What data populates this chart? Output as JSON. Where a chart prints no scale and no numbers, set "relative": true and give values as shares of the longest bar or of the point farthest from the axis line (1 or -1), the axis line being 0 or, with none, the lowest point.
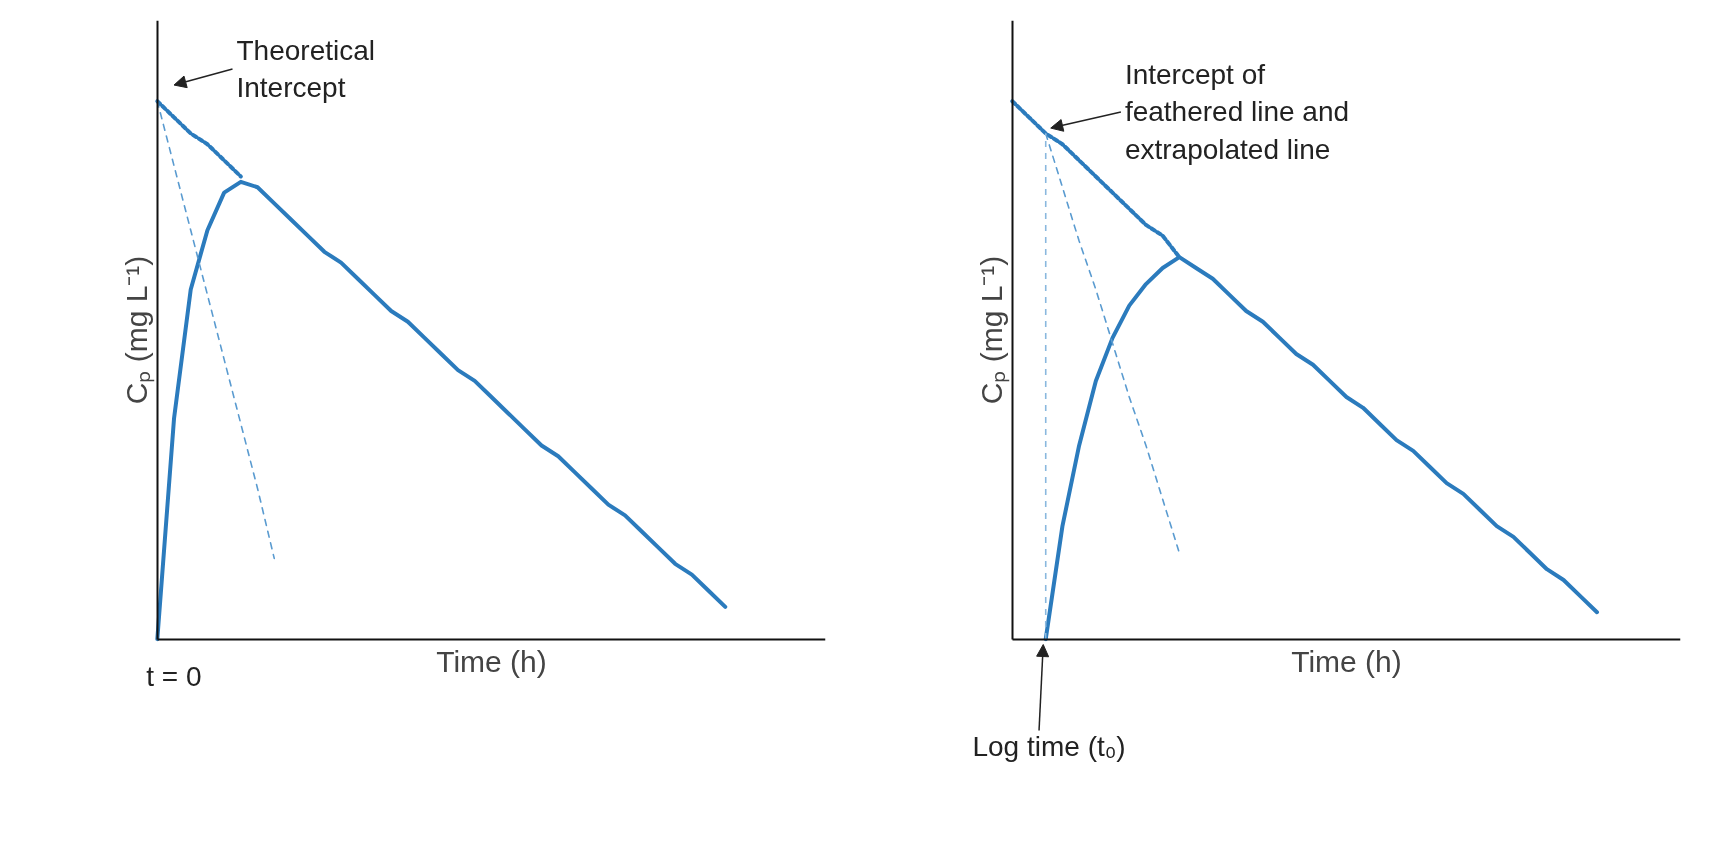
{
  "chart_data": [
    {
      "type": "line",
      "relative": true,
      "xlabel": "Time (h)",
      "ylabel": "Cₚ (mg L⁻¹)",
      "categories": [
        null,
        null,
        null,
        null,
        null,
        null,
        null,
        null,
        null,
        null,
        null,
        null,
        null,
        null,
        null,
        null,
        null,
        null,
        null,
        null,
        null,
        null,
        null,
        null,
        null,
        null,
        null,
        null,
        null,
        null,
        null,
        null,
        null,
        null,
        null,
        null,
        null,
        null,
        null,
        null,
        null
      ],
      "series": [
        {
          "color": "#2b7bbd",
          "line_style": "solid",
          "values": [
            0,
            0.41,
            0.65,
            0.76,
            0.83,
            0.85,
            0.84,
            0.81,
            0.78,
            0.75,
            0.72,
            0.7,
            0.67,
            0.64,
            0.61,
            0.59,
            0.56,
            0.53,
            0.5,
            0.48,
            0.45,
            0.42,
            0.39,
            0.36,
            0.34,
            0.31,
            0.28,
            0.25,
            0.23,
            0.2,
            0.17,
            0.14,
            0.12,
            0.09,
            0.06,
            null,
            null,
            null,
            null,
            null,
            null
          ]
        },
        {
          "color": "#2b7bbd",
          "line_style": "dotted",
          "values": [
            1,
            0.97,
            0.94,
            0.92,
            0.89,
            0.86,
            null,
            null,
            null,
            null,
            null,
            null,
            null,
            null,
            null,
            null,
            null,
            null,
            null,
            null,
            null,
            null,
            null,
            null,
            null,
            null,
            null,
            null,
            null,
            null,
            null,
            null,
            null,
            null,
            null,
            null,
            null,
            null,
            null,
            null,
            null
          ]
        },
        {
          "color": "#5a9bd0",
          "line_style": "dashed",
          "values": [
            1,
            0.88,
            0.76,
            0.64,
            0.52,
            0.4,
            0.28,
            0.15,
            null,
            null,
            null,
            null,
            null,
            null,
            null,
            null,
            null,
            null,
            null,
            null,
            null,
            null,
            null,
            null,
            null,
            null,
            null,
            null,
            null,
            null,
            null,
            null,
            null,
            null,
            null,
            null,
            null,
            null,
            null,
            null,
            null
          ]
        }
      ],
      "annotations": [
        "Theoretical\nIntercept",
        "t = 0"
      ]
    },
    {
      "type": "line",
      "relative": true,
      "xlabel": "Time (h)",
      "ylabel": "Cₚ (mg L⁻¹)",
      "categories": [
        null,
        null,
        null,
        null,
        null,
        null,
        null,
        null,
        null,
        null,
        null,
        null,
        null,
        null,
        null,
        null,
        null,
        null,
        null,
        null,
        null,
        null,
        null,
        null,
        null,
        null,
        null,
        null,
        null,
        null,
        null,
        null,
        null,
        null,
        null,
        null,
        null,
        null,
        null,
        null,
        null
      ],
      "series": [
        {
          "color": "#2b7bbd",
          "line_style": "solid",
          "values": [
            null,
            null,
            0,
            0.21,
            0.36,
            0.48,
            0.56,
            0.62,
            0.66,
            0.69,
            0.71,
            0.69,
            0.67,
            0.64,
            0.61,
            0.59,
            0.56,
            0.53,
            0.51,
            0.48,
            0.45,
            0.43,
            0.4,
            0.37,
            0.35,
            0.32,
            0.29,
            0.27,
            0.24,
            0.21,
            0.19,
            0.16,
            0.13,
            0.11,
            0.08,
            0.05,
            null,
            null,
            null,
            null,
            null
          ]
        },
        {
          "color": "#2b7bbd",
          "line_style": "dotted",
          "values": [
            1,
            0.97,
            0.94,
            0.92,
            0.89,
            0.86,
            0.83,
            0.8,
            0.77,
            0.75,
            0.71,
            null,
            null,
            null,
            null,
            null,
            null,
            null,
            null,
            null,
            null,
            null,
            null,
            null,
            null,
            null,
            null,
            null,
            null,
            null,
            null,
            null,
            null,
            null,
            null,
            null,
            null,
            null,
            null,
            null,
            null
          ]
        },
        {
          "color": "#5a9bd0",
          "line_style": "dashed",
          "values": [
            null,
            null,
            0.94,
            0.84,
            0.74,
            0.65,
            0.55,
            0.45,
            0.36,
            0.26,
            0.16,
            null,
            null,
            null,
            null,
            null,
            null,
            null,
            null,
            null,
            null,
            null,
            null,
            null,
            null,
            null,
            null,
            null,
            null,
            null,
            null,
            null,
            null,
            null,
            null,
            null,
            null,
            null,
            null,
            null,
            null
          ]
        }
      ],
      "annotations": [
        "Intercept of\nfeathered line and\nextrapolated line",
        "Log time (t₀)"
      ]
    }
  ]
}
